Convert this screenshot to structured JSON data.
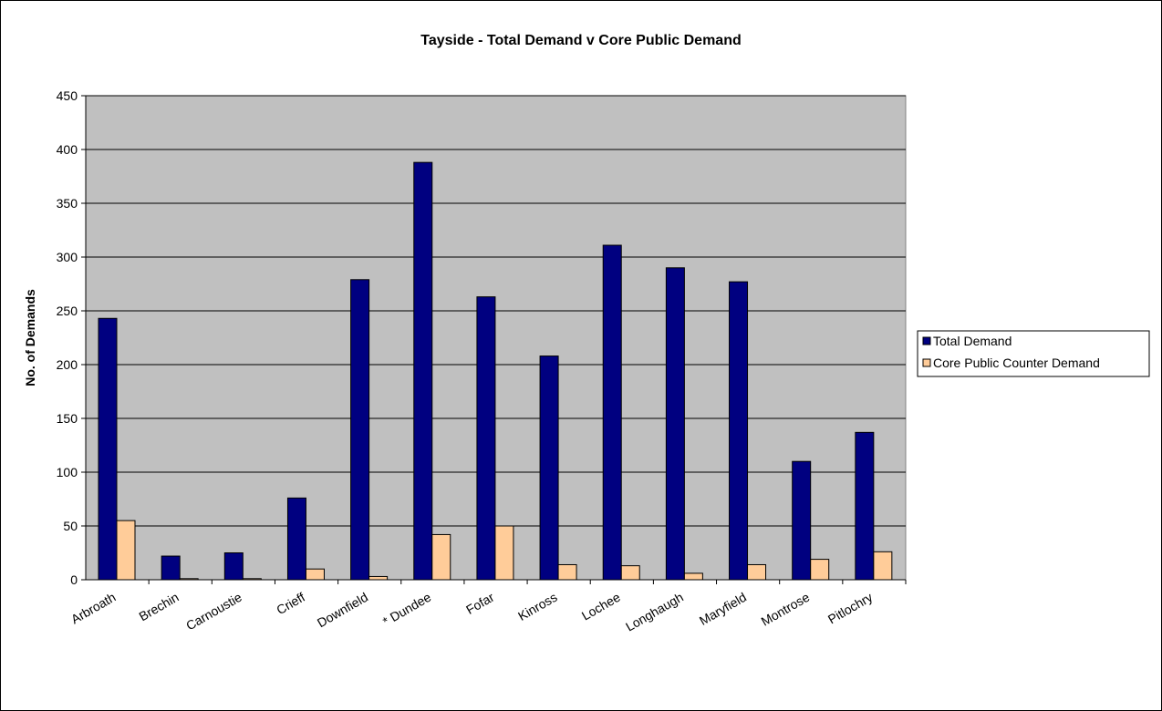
{
  "chart_data": {
    "type": "bar",
    "title": "Tayside - Total Demand v Core Public Demand",
    "xlabel": "",
    "ylabel": "No. of Demands",
    "ylim": [
      0,
      450
    ],
    "yticks": [
      0,
      50,
      100,
      150,
      200,
      250,
      300,
      350,
      400,
      450
    ],
    "grid": true,
    "legend_position": "right",
    "categories": [
      "Arbroath",
      "Brechin",
      "Carnoustie",
      "Crieff",
      "Downfield",
      "* Dundee",
      "Fofar",
      "Kinross",
      "Lochee",
      "Longhaugh",
      "Maryfield",
      "Montrose",
      "Pitlochry"
    ],
    "series": [
      {
        "name": "Total Demand",
        "color": "#000080",
        "values": [
          243,
          22,
          25,
          76,
          279,
          388,
          263,
          208,
          311,
          290,
          277,
          110,
          137
        ]
      },
      {
        "name": "Core Public Counter Demand",
        "color": "#FFCC99",
        "values": [
          55,
          1,
          1,
          10,
          3,
          42,
          50,
          14,
          13,
          6,
          14,
          19,
          26
        ]
      }
    ],
    "plot_background": "#C0C0C0"
  }
}
